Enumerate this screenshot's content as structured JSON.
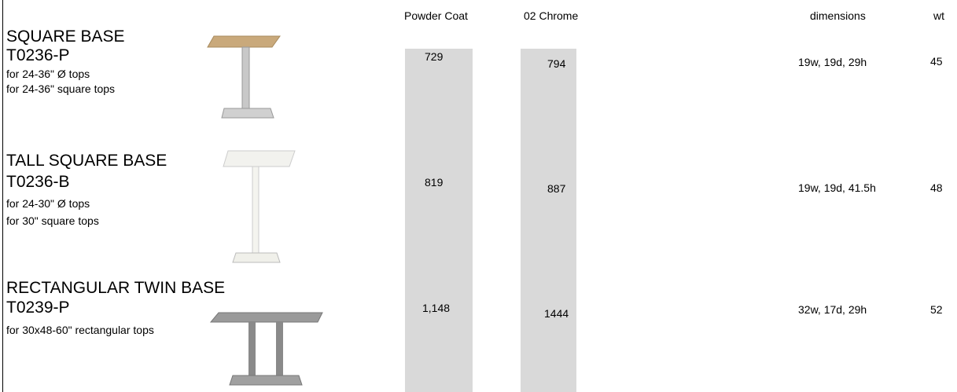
{
  "header": {
    "powder_coat": "Powder Coat",
    "chrome": "02 Chrome",
    "dimensions": "dimensions",
    "wt": "wt"
  },
  "rows": [
    {
      "title": "SQUARE BASE",
      "code": "T0236-P",
      "notes": [
        "for 24-36\" Ø tops",
        "for 24-36\" square tops"
      ],
      "powder_coat": "729",
      "chrome": "794",
      "dimensions": "19w, 19d, 29h",
      "wt": "45"
    },
    {
      "title": "TALL SQUARE BASE",
      "code": "T0236-B",
      "notes": [
        "for 24-30\" Ø tops",
        "for 30\" square tops"
      ],
      "powder_coat": "819",
      "chrome": "887",
      "dimensions": "19w, 19d, 41.5h",
      "wt": "48"
    },
    {
      "title": "RECTANGULAR TWIN BASE",
      "code": "T0239-P",
      "notes": [
        "for 30x48-60\" rectangular tops"
      ],
      "powder_coat": "1,148",
      "chrome": "1444",
      "dimensions": "32w, 17d, 29h",
      "wt": "52"
    }
  ]
}
